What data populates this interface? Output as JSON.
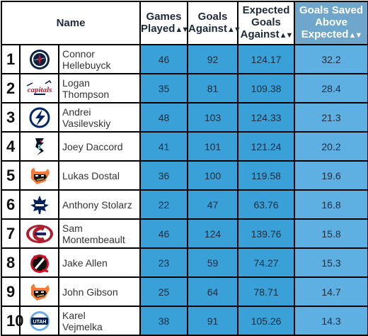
{
  "columns": {
    "name": "Name",
    "games_played": [
      "Games",
      "Played"
    ],
    "goals_against": [
      "Goals",
      "Against"
    ],
    "expected_goals_against": [
      "Expected",
      "Goals",
      "Against"
    ],
    "gsax": [
      "Goals Saved",
      "Above",
      "Expected"
    ]
  },
  "sort_glyph": "▲▼",
  "colors": {
    "stat_cell": "#3aa0d8",
    "sorted_header": "#6fa6cc"
  },
  "rows": [
    {
      "rank": "1",
      "team_logo": "jets-logo",
      "name": [
        "Connor",
        "Hellebuyck"
      ],
      "gp": "46",
      "ga": "92",
      "xga": "124.17",
      "gsax": "32.2"
    },
    {
      "rank": "2",
      "team_logo": "capitals-logo",
      "name": [
        "Logan",
        "Thompson"
      ],
      "gp": "35",
      "ga": "81",
      "xga": "109.38",
      "gsax": "28.4"
    },
    {
      "rank": "3",
      "team_logo": "lightning-logo",
      "name": [
        "Andrei",
        "Vasilevskiy"
      ],
      "gp": "48",
      "ga": "103",
      "xga": "124.33",
      "gsax": "21.3"
    },
    {
      "rank": "4",
      "team_logo": "kraken-logo",
      "name": [
        "Joey Daccord"
      ],
      "gp": "41",
      "ga": "101",
      "xga": "121.24",
      "gsax": "20.2"
    },
    {
      "rank": "5",
      "team_logo": "ducks-logo",
      "name": [
        "Lukas Dostal"
      ],
      "gp": "36",
      "ga": "100",
      "xga": "119.58",
      "gsax": "19.6"
    },
    {
      "rank": "6",
      "team_logo": "maple-leafs-logo",
      "name": [
        "Anthony Stolarz"
      ],
      "gp": "22",
      "ga": "47",
      "xga": "63.76",
      "gsax": "16.8"
    },
    {
      "rank": "7",
      "team_logo": "canadiens-logo",
      "name": [
        "Sam",
        "Montembeault"
      ],
      "gp": "46",
      "ga": "124",
      "xga": "139.76",
      "gsax": "15.8"
    },
    {
      "rank": "8",
      "team_logo": "devils-logo",
      "name": [
        "Jake Allen"
      ],
      "gp": "23",
      "ga": "59",
      "xga": "74.27",
      "gsax": "15.3"
    },
    {
      "rank": "9",
      "team_logo": "ducks-logo",
      "name": [
        "John Gibson"
      ],
      "gp": "25",
      "ga": "64",
      "xga": "78.71",
      "gsax": "14.7"
    },
    {
      "rank": "10",
      "team_logo": "utah-logo",
      "utah_text": "UTAH",
      "name": [
        "Karel",
        "Vejmelka"
      ],
      "gp": "38",
      "ga": "91",
      "xga": "105.26",
      "gsax": "14.3"
    }
  ]
}
